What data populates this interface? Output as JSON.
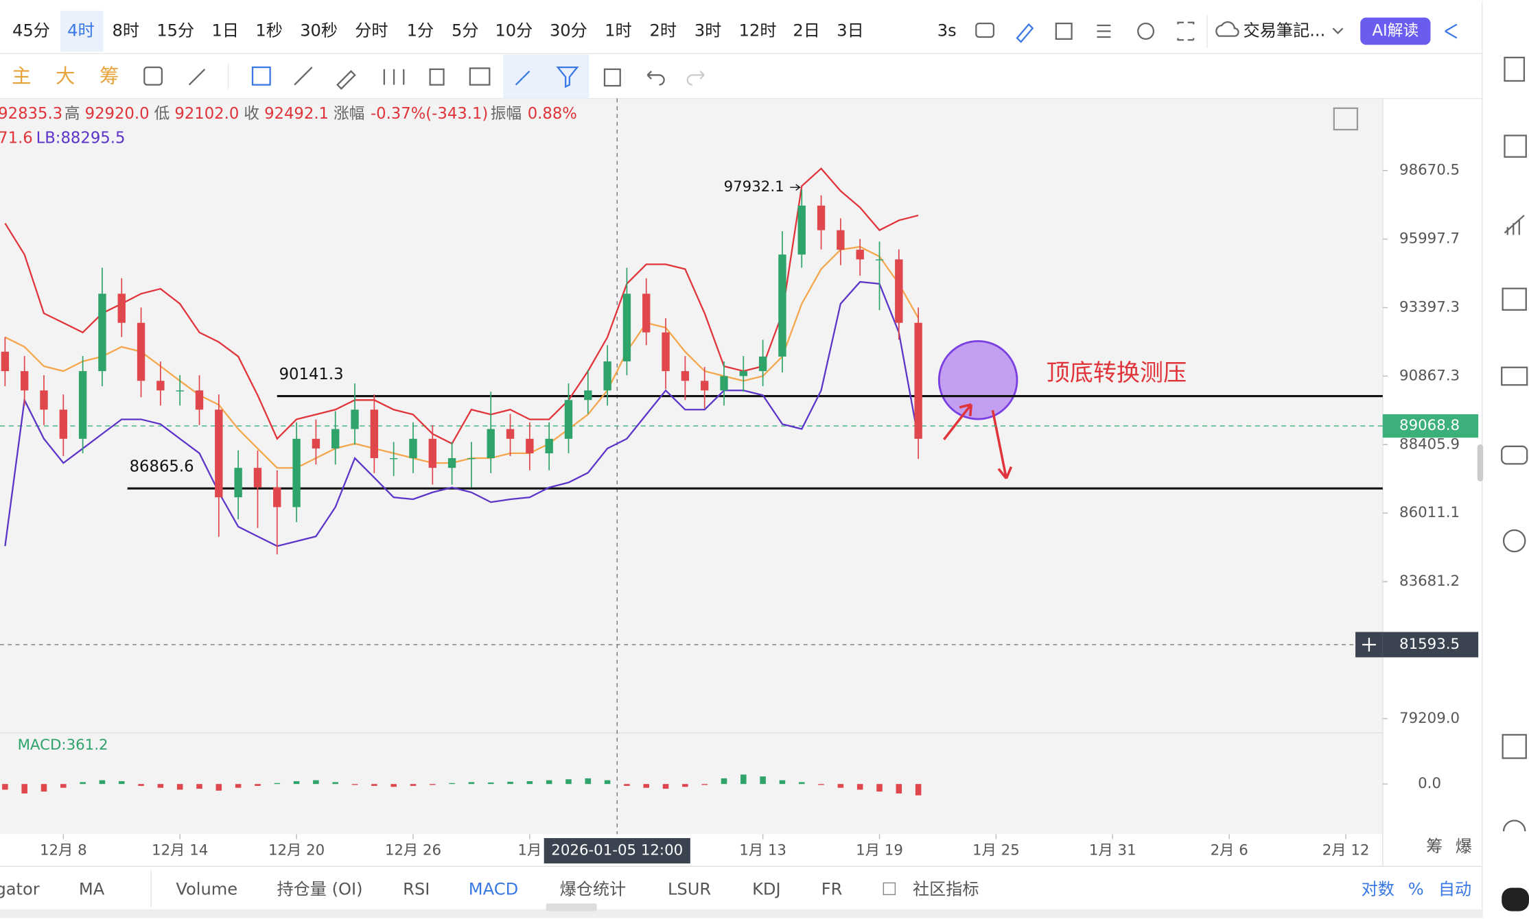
{
  "toolbar": {
    "timeframes": [
      "45分",
      "4时",
      "8时",
      "15分",
      "1日",
      "1秒",
      "30秒",
      "分时",
      "1分",
      "5分",
      "10分",
      "30分",
      "1时",
      "2时",
      "3时",
      "12时",
      "2日",
      "3日"
    ],
    "refresh": "3s",
    "notes": "交易筆記...",
    "ai": "AI解读",
    "indicator_buttons": [
      "主",
      "大",
      "筹"
    ]
  },
  "ohlc": {
    "open": "92835.3",
    "high_label": "高",
    "high": "92920.0",
    "low_label": "低",
    "low": "92102.0",
    "close_label": "收",
    "close": "92492.1",
    "change_label": "涨幅",
    "change": "-0.37%(-343.1)",
    "amplitude_label": "振幅",
    "amplitude": "0.88%"
  },
  "bands_info": {
    "partial": "71.6",
    "lb": "LB:88295.5"
  },
  "chart_data": [
    {
      "type": "candlestick",
      "log_scale": true,
      "x": [
        -3,
        -2,
        -1,
        0,
        1,
        2,
        3,
        4,
        5,
        6,
        7,
        8,
        9,
        10,
        11,
        12,
        13,
        14,
        15,
        16,
        17,
        18,
        19,
        20,
        21,
        22,
        23,
        24,
        25,
        26,
        27,
        28,
        29,
        30,
        31,
        32,
        33,
        34,
        35,
        36,
        37,
        38,
        39,
        40,
        41,
        42,
        43,
        44
      ],
      "xlim": [
        -3.26,
        67.9
      ],
      "xticks": [
        {
          "value": 0,
          "label": "12月 8"
        },
        {
          "value": 6,
          "label": "12月 14"
        },
        {
          "value": 12,
          "label": "12月 20"
        },
        {
          "value": 18,
          "label": "12月 26"
        },
        {
          "value": 24,
          "label": "1月"
        },
        {
          "value": 36,
          "label": "1月 13"
        },
        {
          "value": 42,
          "label": "1月 19"
        },
        {
          "value": 48,
          "label": "1月 25"
        },
        {
          "value": 54,
          "label": "1月 31"
        },
        {
          "value": 60,
          "label": "2月 6"
        },
        {
          "value": 66,
          "label": "2月 12"
        }
      ],
      "ylim": [
        101564,
        78790
      ],
      "yticks": [
        98670.5,
        95997.7,
        93397.3,
        90867.3,
        88405.9,
        86011.1,
        83681.2,
        {
          "value": 79209,
          "label": "79209.0"
        }
      ],
      "up_color": "#2ea36a",
      "down_color": "#e0474c",
      "open": [
        91760,
        91048,
        90347,
        89653,
        88612,
        91048,
        93917,
        92828,
        90694,
        90347,
        90347,
        89653,
        86559,
        87585,
        86901,
        86217,
        88612,
        88269,
        88959,
        89653,
        87927,
        87927,
        88612,
        87585,
        87927,
        87927,
        88959,
        88612,
        88098,
        88612,
        90000,
        90347,
        91404,
        93917,
        92472,
        91048,
        90694,
        90347,
        90867,
        91048,
        91582,
        95404,
        97295,
        96340,
        95590,
        95218,
        95218,
        92828
      ],
      "high": [
        92300,
        91600,
        90900,
        90200,
        91600,
        94900,
        94500,
        93400,
        91400,
        90900,
        90900,
        90200,
        88200,
        88200,
        87500,
        89200,
        89300,
        89600,
        90600,
        90200,
        88500,
        89200,
        89100,
        88500,
        88500,
        90300,
        89500,
        89200,
        89200,
        90600,
        91100,
        92000,
        94900,
        94500,
        93000,
        91600,
        91200,
        91400,
        91600,
        92200,
        96300,
        97932.1,
        97700,
        96800,
        96000,
        95900,
        95600,
        93400
      ],
      "low": [
        90500,
        89800,
        89100,
        88000,
        88100,
        90500,
        92300,
        90100,
        89800,
        89800,
        89100,
        85200,
        85800,
        85500,
        84600,
        85700,
        87700,
        87700,
        88400,
        87400,
        87300,
        87400,
        87000,
        87000,
        86900,
        87400,
        88000,
        87500,
        87500,
        88100,
        89500,
        89800,
        90900,
        92000,
        90400,
        90000,
        89700,
        89800,
        90300,
        90500,
        91000,
        94900,
        95600,
        95000,
        94600,
        93300,
        92200,
        87900
      ],
      "close": [
        91048,
        90347,
        89653,
        88612,
        91048,
        93917,
        92828,
        90694,
        90347,
        90347,
        89653,
        86559,
        87585,
        86901,
        86217,
        88612,
        88269,
        88959,
        89653,
        87927,
        87927,
        88612,
        87585,
        87927,
        87927,
        88959,
        88612,
        88098,
        88612,
        90000,
        90347,
        91404,
        93917,
        92472,
        91048,
        90694,
        90347,
        90867,
        91048,
        91582,
        95404,
        97295,
        96340,
        95590,
        95218,
        95218,
        92828,
        88612
      ],
      "series": [
        {
          "color": "#e0333a",
          "values": [
            96607,
            95404,
            93184,
            92828,
            92472,
            93184,
            93540,
            93917,
            94103,
            93540,
            92472,
            92116,
            91582,
            90174,
            88612,
            89306,
            89480,
            89653,
            90000,
            90000,
            89653,
            89480,
            88786,
            88440,
            89653,
            89480,
            89653,
            89306,
            89306,
            90000,
            91048,
            92294,
            94291,
            95033,
            95033,
            94848,
            93184,
            91226,
            91048,
            91226,
            93184,
            98059,
            98750,
            97868,
            97219,
            96340,
            96722,
            96913
          ]
        },
        {
          "color": "#f5a54a",
          "values": [
            92294,
            91938,
            91226,
            91048,
            91404,
            91582,
            91938,
            91760,
            91226,
            90694,
            90174,
            89827,
            88959,
            88269,
            87585,
            87585,
            87927,
            88269,
            88440,
            88269,
            88098,
            87927,
            87756,
            87756,
            87927,
            87927,
            88098,
            88098,
            88440,
            88959,
            89480,
            90347,
            91760,
            92828,
            92650,
            91760,
            91048,
            90867,
            90694,
            90867,
            91582,
            93540,
            94848,
            95590,
            95701,
            95330,
            94291,
            93006
          ]
        },
        {
          "color": "#5b33c9",
          "values": [
            84879,
            90000,
            88612,
            87756,
            88269,
            88786,
            89306,
            89306,
            89133,
            88612,
            88098,
            86730,
            85545,
            85212,
            84879,
            85045,
            85212,
            86217,
            87927,
            87243,
            86559,
            86491,
            86730,
            86901,
            86730,
            86388,
            86491,
            86559,
            86901,
            87072,
            87414,
            88269,
            88612,
            89480,
            90347,
            89653,
            89653,
            90347,
            90347,
            90174,
            89133,
            88959,
            90347,
            93540,
            94365,
            94291,
            92472,
            88612
          ]
        }
      ],
      "levels": [
        {
          "value": 90141.3,
          "x0": 11
        },
        {
          "value": 86865.6,
          "x0": 3.3
        }
      ],
      "level_color": "#111111",
      "annotation": "顶底转换测压",
      "annotation_color": "#e0333a",
      "current_price": 89068.8,
      "current_color": "#3bb07a",
      "crosshair": {
        "price": 81593.5,
        "x": 28.5,
        "date_label": "2026-01-05 12:00"
      }
    },
    {
      "type": "bar",
      "label": "MACD:361.2",
      "x": [
        -3,
        -2,
        -1,
        0,
        1,
        2,
        3,
        4,
        5,
        6,
        7,
        8,
        9,
        10,
        11,
        12,
        13,
        14,
        15,
        16,
        17,
        18,
        19,
        20,
        21,
        22,
        23,
        24,
        25,
        26,
        27,
        28,
        29,
        30,
        31,
        32,
        33,
        34,
        35,
        36,
        37,
        38,
        39,
        40,
        41,
        42,
        43,
        44
      ],
      "ylim": [
        -2500,
        2500
      ],
      "yticks": [
        {
          "value": 0,
          "label": "0.0"
        }
      ],
      "up_color": "#2ea36a",
      "down_color": "#e0474c",
      "values": [
        -300,
        -500,
        -400,
        -200,
        100,
        200,
        150,
        -100,
        -200,
        -300,
        -250,
        -350,
        -200,
        -100,
        50,
        150,
        200,
        100,
        -50,
        -100,
        -150,
        -100,
        -50,
        50,
        100,
        80,
        120,
        150,
        200,
        250,
        300,
        200,
        -100,
        -200,
        -250,
        -150,
        -50,
        300,
        500,
        400,
        200,
        100,
        -50,
        -200,
        -300,
        -400,
        -500,
        -600
      ]
    }
  ],
  "axis_extra": [
    "筹",
    "爆"
  ],
  "bottom_tabs": [
    "gator",
    "MA",
    "Volume",
    "持仓量 (OI)",
    "RSI",
    "MACD",
    "爆仓统计",
    "LSUR",
    "KDJ",
    "FR",
    "社区指标"
  ],
  "bottom_right": [
    "对数",
    "%",
    "自动"
  ]
}
